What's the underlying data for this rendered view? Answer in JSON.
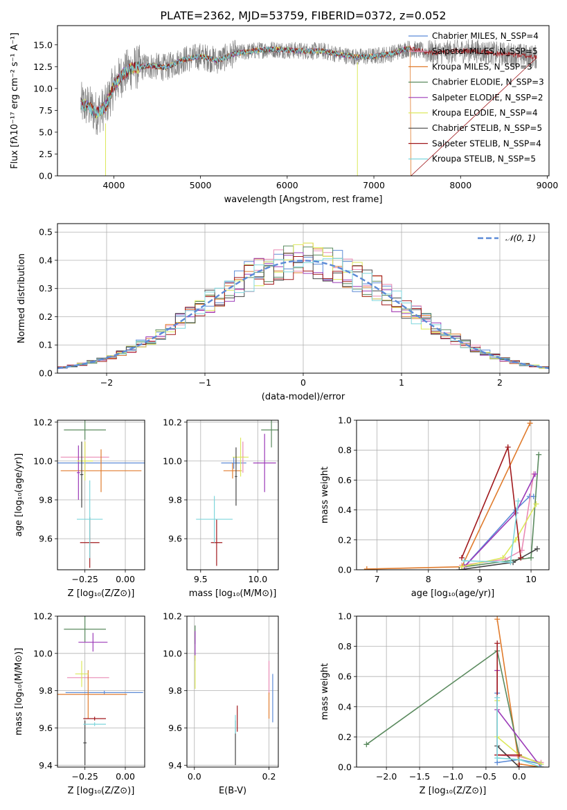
{
  "colors": {
    "chabrier_miles": "#5b8ad6",
    "salpeter_miles": "#e98ab4",
    "kroupa_miles": "#e07b2c",
    "chabrier_elodie": "#5a8a5e",
    "salpeter_elodie": "#9b3ab8",
    "kroupa_elodie": "#dce85a",
    "chabrier_stelib": "#444444",
    "salpeter_stelib": "#a0181c",
    "kroupa_stelib": "#7dd6dc",
    "spectrum": "#808080",
    "gaussian": "#5b8ad6"
  },
  "chart_data": [
    {
      "id": "spectrum",
      "type": "line",
      "title": "PLATE=2362, MJD=53759, FIBERID=0372, z=0.052",
      "xlabel": "wavelength [Angstrom, rest frame]",
      "ylabel": "Flux [fλ10⁻¹⁷ erg cm⁻² s⁻¹ A⁻¹]",
      "xlim": [
        3350,
        9020
      ],
      "ylim": [
        0,
        17.2
      ],
      "xticks": [
        4000,
        5000,
        6000,
        7000,
        8000,
        9000
      ],
      "yticks": [
        0.0,
        2.5,
        5.0,
        7.5,
        10.0,
        12.5,
        15.0
      ],
      "data_range": [
        3620,
        8880
      ],
      "model_end": 7420,
      "continuum": [
        [
          3620,
          8.2
        ],
        [
          3700,
          8.0
        ],
        [
          3800,
          7.2
        ],
        [
          3900,
          7.8
        ],
        [
          4000,
          10.3
        ],
        [
          4100,
          11.6
        ],
        [
          4200,
          12.3
        ],
        [
          4400,
          12.6
        ],
        [
          4600,
          12.4
        ],
        [
          4800,
          13.3
        ],
        [
          5000,
          13.7
        ],
        [
          5200,
          13.2
        ],
        [
          5400,
          14.0
        ],
        [
          5600,
          14.3
        ],
        [
          5800,
          14.5
        ],
        [
          6000,
          14.4
        ],
        [
          6200,
          14.3
        ],
        [
          6400,
          14.3
        ],
        [
          6600,
          13.9
        ],
        [
          6800,
          13.6
        ],
        [
          7000,
          13.7
        ],
        [
          7200,
          14.0
        ],
        [
          7400,
          14.6
        ],
        [
          7600,
          14.2
        ],
        [
          7800,
          14.1
        ],
        [
          8000,
          14.3
        ],
        [
          8200,
          14.3
        ],
        [
          8400,
          14.0
        ],
        [
          8600,
          13.9
        ],
        [
          8880,
          13.6
        ]
      ],
      "legend": [
        "Chabrier MILES, N_SSP=4",
        "Salpeter MILES, N_SSP=5",
        "Kroupa MILES, N_SSP=3",
        "Chabrier ELODIE, N_SSP=3",
        "Salpeter ELODIE, N_SSP=2",
        "Kroupa ELODIE, N_SSP=4",
        "Chabrier STELIB, N_SSP=5",
        "Salpeter STELIB, N_SSP=4",
        "Kroupa STELIB, N_SSP=5"
      ]
    },
    {
      "id": "residuals",
      "type": "line",
      "xlabel": "(data-model)/error",
      "ylabel": "Normed distribution",
      "xlim": [
        -2.5,
        2.5
      ],
      "ylim": [
        0,
        0.53
      ],
      "xticks": [
        -2,
        -1,
        0,
        1,
        2
      ],
      "yticks": [
        0.0,
        0.1,
        0.2,
        0.3,
        0.4,
        0.5
      ],
      "bin_width": 0.1,
      "legend": [
        "𝒩(0, 1)"
      ]
    },
    {
      "id": "age_vs_z",
      "type": "scatter",
      "xlabel": "Z [log₁₀(Z/Z⊙)]",
      "ylabel": "age  [log₁₀(age/yr)]",
      "xlim": [
        -0.42,
        0.12
      ],
      "ylim": [
        9.44,
        10.21
      ],
      "xticks": [
        -0.25,
        0.0
      ],
      "yticks": [
        9.6,
        9.8,
        10.0,
        10.2
      ],
      "points": [
        {
          "c": "chabrier_miles",
          "x": -0.25,
          "xe": 0.37,
          "y": 9.99,
          "ye": 0.01
        },
        {
          "c": "salpeter_miles",
          "x": -0.25,
          "xe": 0.15,
          "y": 10.02,
          "ye": 0.08
        },
        {
          "c": "kroupa_miles",
          "x": -0.15,
          "xe": 0.25,
          "y": 9.95,
          "ye": 0.11
        },
        {
          "c": "chabrier_elodie",
          "x": -0.25,
          "xe": 0.13,
          "y": 10.16,
          "ye": 0.05
        },
        {
          "c": "salpeter_elodie",
          "x": -0.29,
          "xe": 0.01,
          "y": 9.94,
          "ye": 0.14
        },
        {
          "c": "kroupa_elodie",
          "x": -0.25,
          "xe": 0.05,
          "y": 10.0,
          "ye": 0.1
        },
        {
          "c": "chabrier_stelib",
          "x": -0.27,
          "xe": 0.01,
          "y": 9.93,
          "ye": 0.17
        },
        {
          "c": "salpeter_stelib",
          "x": -0.22,
          "xe": 0.06,
          "y": 9.58,
          "ye": 0.13
        },
        {
          "c": "kroupa_stelib",
          "x": -0.22,
          "xe": 0.08,
          "y": 9.7,
          "ye": 0.2
        }
      ]
    },
    {
      "id": "age_vs_mass",
      "type": "scatter",
      "xlabel": "mass [log₁₀(M/M⊙)]",
      "ylabel": "",
      "xlim": [
        9.38,
        10.18
      ],
      "ylim": [
        9.44,
        10.21
      ],
      "xticks": [
        9.5,
        10.0
      ],
      "yticks": [
        9.6,
        9.8,
        10.0,
        10.2
      ],
      "points": [
        {
          "c": "chabrier_miles",
          "x": 9.79,
          "xe": 0.11,
          "y": 9.99,
          "ye": 0.03
        },
        {
          "c": "salpeter_miles",
          "x": 9.87,
          "xe": 0.01,
          "y": 10.02,
          "ye": 0.08
        },
        {
          "c": "kroupa_miles",
          "x": 9.78,
          "xe": 0.08,
          "y": 9.95,
          "ye": 0.04
        },
        {
          "c": "chabrier_elodie",
          "x": 10.12,
          "xe": 0.09,
          "y": 10.16,
          "ye": 0.09
        },
        {
          "c": "salpeter_elodie",
          "x": 10.06,
          "xe": 0.1,
          "y": 9.99,
          "ye": 0.15
        },
        {
          "c": "kroupa_elodie",
          "x": 9.85,
          "xe": 0.07,
          "y": 10.02,
          "ye": 0.1
        },
        {
          "c": "chabrier_stelib",
          "x": 9.81,
          "xe": 0.01,
          "y": 9.92,
          "ye": 0.15
        },
        {
          "c": "salpeter_stelib",
          "x": 9.64,
          "xe": 0.05,
          "y": 9.58,
          "ye": 0.12
        },
        {
          "c": "kroupa_stelib",
          "x": 9.62,
          "xe": 0.16,
          "y": 9.7,
          "ye": 0.12
        }
      ]
    },
    {
      "id": "weight_vs_age",
      "type": "line",
      "xlabel": "age  [log₁₀(age/yr)]",
      "ylabel": "mass weight",
      "xlim": [
        6.6,
        10.35
      ],
      "ylim": [
        0,
        1.0
      ],
      "xticks": [
        7,
        8,
        9,
        10
      ],
      "yticks": [
        0.0,
        0.2,
        0.4,
        0.6,
        0.8,
        1.0
      ],
      "series": [
        {
          "c": "chabrier_miles",
          "x": [
            8.7,
            9.7,
            9.97,
            10.05
          ],
          "y": [
            0.02,
            0.4,
            0.49,
            0.49
          ]
        },
        {
          "c": "salpeter_miles",
          "x": [
            8.65,
            9.5,
            9.82,
            10.05
          ],
          "y": [
            0.03,
            0.07,
            0.13,
            0.64
          ]
        },
        {
          "c": "kroupa_miles",
          "x": [
            6.8,
            8.65,
            9.98
          ],
          "y": [
            0.005,
            0.02,
            0.98
          ]
        },
        {
          "c": "chabrier_elodie",
          "x": [
            8.7,
            10.0,
            10.15
          ],
          "y": [
            0.02,
            0.08,
            0.77
          ]
        },
        {
          "c": "salpeter_elodie",
          "x": [
            8.7,
            9.7,
            10.08
          ],
          "y": [
            0.02,
            0.38,
            0.64
          ]
        },
        {
          "c": "kroupa_elodie",
          "x": [
            8.65,
            9.45,
            9.7,
            10.1
          ],
          "y": [
            0.02,
            0.08,
            0.2,
            0.44
          ]
        },
        {
          "c": "chabrier_stelib",
          "x": [
            8.6,
            9.65,
            10.12
          ],
          "y": [
            0.0,
            0.05,
            0.14
          ]
        },
        {
          "c": "salpeter_stelib",
          "x": [
            8.65,
            9.55,
            9.8
          ],
          "y": [
            0.08,
            0.82,
            0.08
          ]
        },
        {
          "c": "kroupa_stelib",
          "x": [
            8.7,
            9.6,
            9.75
          ],
          "y": [
            0.06,
            0.05,
            0.46
          ]
        }
      ]
    },
    {
      "id": "mass_vs_z",
      "type": "scatter",
      "xlabel": "Z [log₁₀(Z/Z⊙)]",
      "ylabel": "mass [log₁₀(M/M⊙)]",
      "xlim": [
        -0.42,
        0.12
      ],
      "ylim": [
        9.39,
        10.2
      ],
      "xticks": [
        -0.25,
        0.0
      ],
      "yticks": [
        9.4,
        9.6,
        9.8,
        10.0,
        10.2
      ],
      "points": [
        {
          "c": "chabrier_miles",
          "x": -0.13,
          "xe": 0.24,
          "y": 9.79,
          "ye": 0.01
        },
        {
          "c": "salpeter_miles",
          "x": -0.23,
          "xe": 0.13,
          "y": 9.87,
          "ye": 0.01
        },
        {
          "c": "kroupa_miles",
          "x": -0.23,
          "xe": 0.24,
          "y": 9.78,
          "ye": 0.13
        },
        {
          "c": "chabrier_elodie",
          "x": -0.25,
          "xe": 0.13,
          "y": 10.13,
          "ye": 0.07
        },
        {
          "c": "salpeter_elodie",
          "x": -0.2,
          "xe": 0.09,
          "y": 10.06,
          "ye": 0.05
        },
        {
          "c": "kroupa_elodie",
          "x": -0.27,
          "xe": 0.04,
          "y": 9.89,
          "ye": 0.07
        },
        {
          "c": "chabrier_stelib",
          "x": -0.25,
          "xe": 0.01,
          "y": 9.52,
          "ye": 0.12
        },
        {
          "c": "salpeter_stelib",
          "x": -0.19,
          "xe": 0.07,
          "y": 9.65,
          "ye": 0.01
        },
        {
          "c": "kroupa_stelib",
          "x": -0.19,
          "xe": 0.07,
          "y": 9.62,
          "ye": 0.01
        }
      ]
    },
    {
      "id": "mass_vs_ebv",
      "type": "scatter",
      "xlabel": "E(B-V)",
      "ylabel": "",
      "xlim": [
        -0.02,
        0.225
      ],
      "ylim": [
        9.39,
        10.2
      ],
      "xticks": [
        0.0,
        0.2
      ],
      "yticks": [
        9.4,
        9.6,
        9.8,
        10.0,
        10.2
      ],
      "points": [
        {
          "c": "chabrier_miles",
          "x": 0.21,
          "xe": 0.0,
          "y": 9.76,
          "ye": 0.13
        },
        {
          "c": "salpeter_miles",
          "x": 0.2,
          "xe": 0.0,
          "y": 9.87,
          "ye": 0.09
        },
        {
          "c": "kroupa_miles",
          "x": 0.2,
          "xe": 0.0,
          "y": 9.72,
          "ye": 0.07
        },
        {
          "c": "chabrier_elodie",
          "x": 0.002,
          "xe": 0.0,
          "y": 10.1,
          "ye": 0.05
        },
        {
          "c": "salpeter_elodie",
          "x": 0.002,
          "xe": 0.0,
          "y": 10.04,
          "ye": 0.08
        },
        {
          "c": "kroupa_elodie",
          "x": 0.002,
          "xe": 0.0,
          "y": 9.9,
          "ye": 0.09
        },
        {
          "c": "chabrier_stelib",
          "x": 0.11,
          "xe": 0.0,
          "y": 9.52,
          "ye": 0.12
        },
        {
          "c": "salpeter_stelib",
          "x": 0.115,
          "xe": 0.0,
          "y": 9.65,
          "ye": 0.07
        },
        {
          "c": "kroupa_stelib",
          "x": 0.11,
          "xe": 0.0,
          "y": 9.62,
          "ye": 0.05
        }
      ]
    },
    {
      "id": "weight_vs_z",
      "type": "line",
      "xlabel": "Z [log₁₀(Z/Z⊙)]",
      "ylabel": "mass weight",
      "xlim": [
        -2.45,
        0.45
      ],
      "ylim": [
        0,
        1.0
      ],
      "xticks": [
        -2.0,
        -1.5,
        -1.0,
        -0.5,
        0.0
      ],
      "yticks": [
        0.0,
        0.2,
        0.4,
        0.6,
        0.8,
        1.0
      ],
      "series": [
        {
          "c": "chabrier_miles",
          "x": [
            -0.33,
            -0.33,
            0.0,
            0.33
          ],
          "y": [
            0.49,
            0.03,
            0.05,
            0.02
          ]
        },
        {
          "c": "salpeter_miles",
          "x": [
            -0.33,
            -0.33,
            0.0,
            0.33
          ],
          "y": [
            0.64,
            0.08,
            0.07,
            0.03
          ]
        },
        {
          "c": "kroupa_miles",
          "x": [
            -0.33,
            0.0,
            0.33
          ],
          "y": [
            0.98,
            0.02,
            0.0
          ]
        },
        {
          "c": "chabrier_elodie",
          "x": [
            -2.3,
            -0.33,
            0.0,
            0.33
          ],
          "y": [
            0.15,
            0.77,
            0.08,
            0.02
          ]
        },
        {
          "c": "salpeter_elodie",
          "x": [
            -0.33,
            -0.33,
            0.33
          ],
          "y": [
            0.64,
            0.38,
            0.0
          ]
        },
        {
          "c": "kroupa_elodie",
          "x": [
            -0.33,
            -0.33,
            0.0,
            0.33
          ],
          "y": [
            0.44,
            0.2,
            0.08,
            0.02
          ]
        },
        {
          "c": "chabrier_stelib",
          "x": [
            -0.33,
            0.0,
            0.33
          ],
          "y": [
            0.14,
            0.0,
            0.0
          ]
        },
        {
          "c": "salpeter_stelib",
          "x": [
            -0.33,
            -0.33,
            0.0,
            0.0
          ],
          "y": [
            0.82,
            0.08,
            0.08,
            0.0
          ]
        },
        {
          "c": "kroupa_stelib",
          "x": [
            -0.33,
            -0.33,
            0.0,
            0.33
          ],
          "y": [
            0.46,
            0.06,
            0.05,
            0.0
          ]
        }
      ]
    }
  ]
}
